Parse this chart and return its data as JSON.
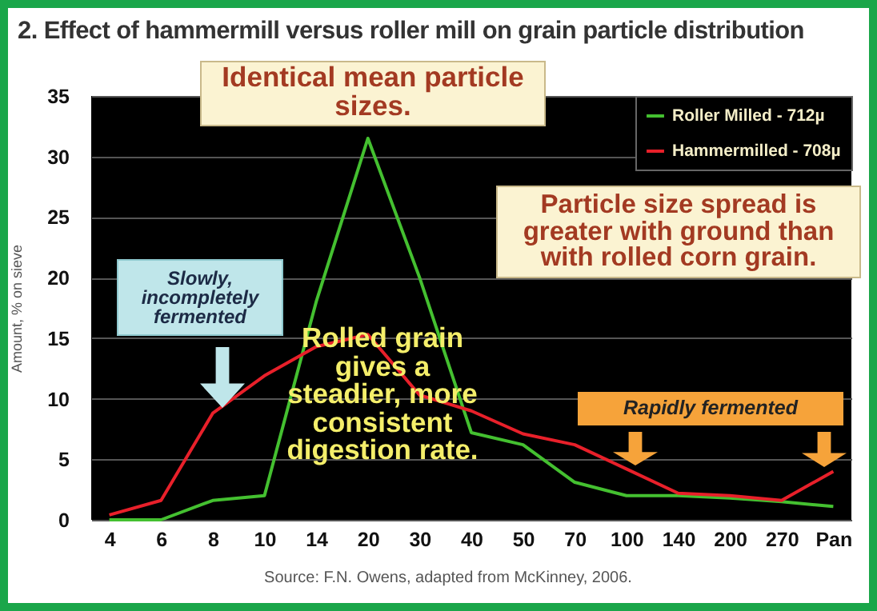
{
  "chart_data": {
    "type": "line",
    "title": "2. Effect of hammermill versus roller mill on grain particle distribution",
    "ylabel": "Amount, % on sieve",
    "categories": [
      "4",
      "6",
      "8",
      "10",
      "14",
      "20",
      "30",
      "40",
      "50",
      "70",
      "100",
      "140",
      "200",
      "270",
      "Pan"
    ],
    "series": [
      {
        "name": "Roller Milled - 712µ",
        "color": "#44c030",
        "values": [
          0,
          0,
          1.6,
          2.0,
          18,
          31.5,
          20,
          7.2,
          6.2,
          3.1,
          2.0,
          2.0,
          1.8,
          1.5,
          1.1
        ]
      },
      {
        "name": "Hammermilled - 708µ",
        "color": "#e8202a",
        "values": [
          0.4,
          1.6,
          8.8,
          11.9,
          14.3,
          15.3,
          10.3,
          9.0,
          7.1,
          6.2,
          4.2,
          2.2,
          2.0,
          1.6,
          4.0
        ]
      }
    ],
    "ylim": [
      0,
      35
    ],
    "yticks": [
      0,
      5,
      10,
      15,
      20,
      25,
      30,
      35
    ],
    "grid": "y",
    "legend": "top right",
    "marker": "none",
    "line_style": "solid",
    "annotations": [
      "Identical mean particle sizes.",
      "Particle size spread is greater with ground than with rolled corn grain.",
      "Slowly, incompletely fermented",
      "Rolled grain gives a steadier, more consistent digestion rate.",
      "Rapidly fermented",
      "Source: F.N. Owens, adapted from McKinney, 2006."
    ]
  }
}
